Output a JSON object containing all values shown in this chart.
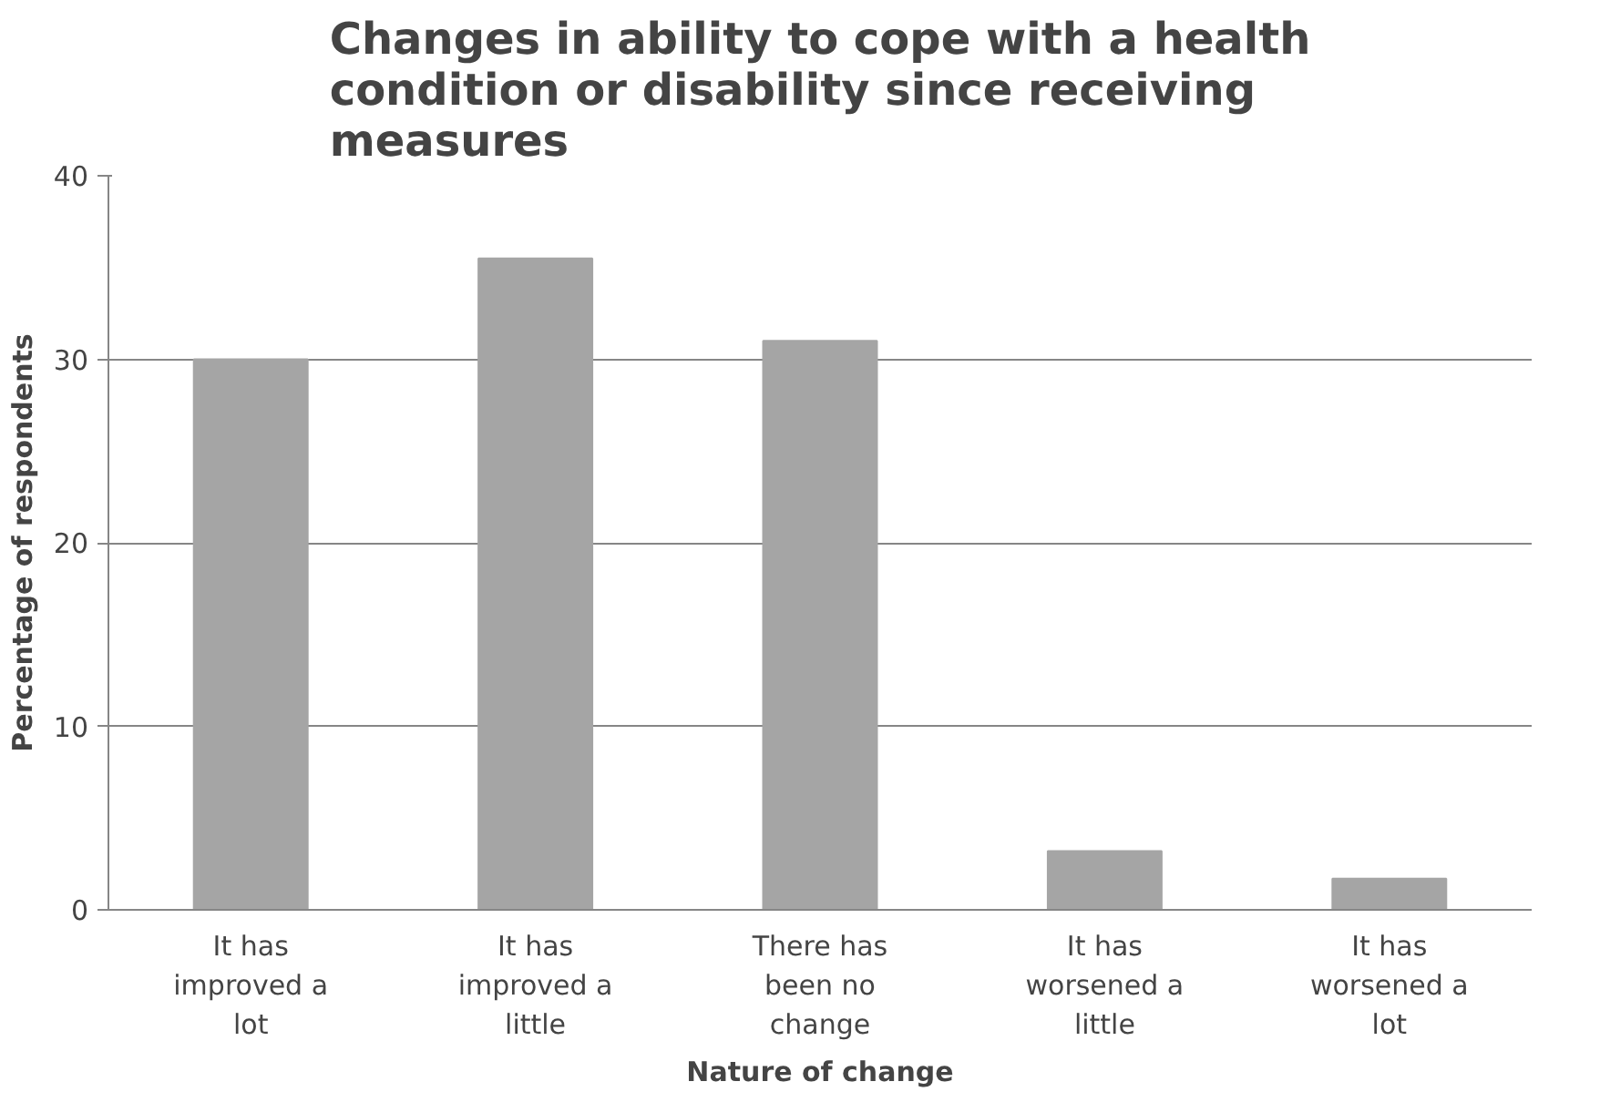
{
  "chart_data": {
    "type": "bar",
    "title": "Changes in ability to cope with a health condition or disability since receiving measures",
    "xlabel": "Nature of change",
    "ylabel": "Percentage of respondents",
    "categories": [
      "It has improved a lot",
      "It has improved a little",
      "There has been no change",
      "It has worsened a little",
      "It has worsened a lot"
    ],
    "values": [
      30,
      35.5,
      31,
      3.2,
      1.7
    ],
    "color": "#a5a5a5",
    "ylim": [
      0,
      40
    ],
    "yticks": [
      0,
      10,
      20,
      30,
      40
    ],
    "grid": "y"
  }
}
